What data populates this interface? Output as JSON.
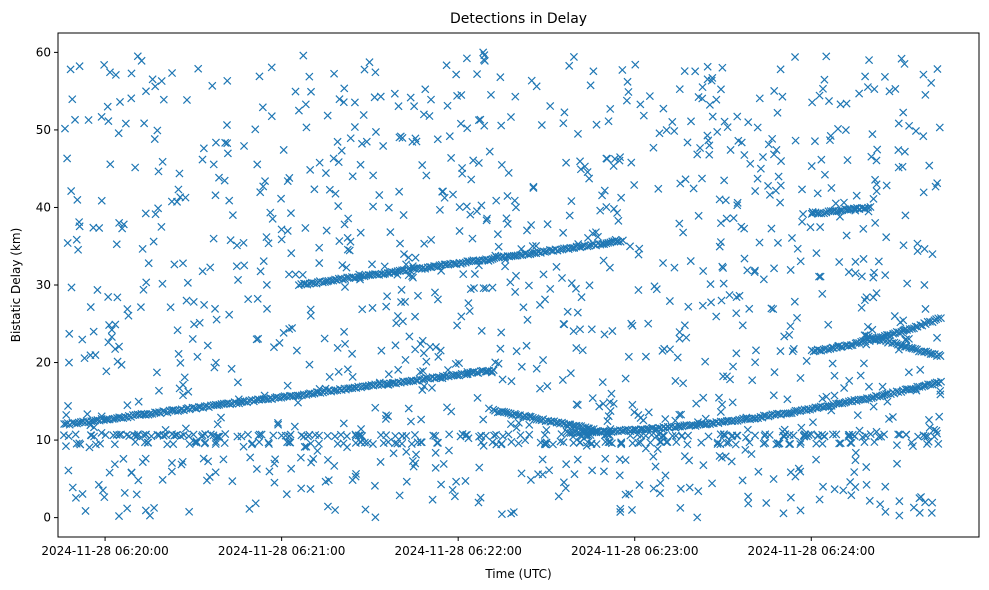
{
  "chart_data": {
    "type": "scatter",
    "title": "Detections in Delay",
    "xlabel": "Time (UTC)",
    "ylabel": "Bistatic Delay (km)",
    "xlim": [
      "2024-11-28 06:19:44",
      "2024-11-28 06:24:57"
    ],
    "ylim": [
      -2.5,
      62.5
    ],
    "grid": false,
    "marker": "x",
    "color": "#1f77b4",
    "x_ticks": [
      "2024-11-28 06:20:00",
      "2024-11-28 06:21:00",
      "2024-11-28 06:22:00",
      "2024-11-28 06:23:00",
      "2024-11-28 06:24:00"
    ],
    "y_ticks": [
      "0",
      "10",
      "20",
      "30",
      "40",
      "50",
      "60"
    ],
    "tracks": [
      {
        "x_start": "2024-11-28 06:19:46",
        "x_end": "2024-11-28 06:22:12",
        "y_start": 12.0,
        "y_end": 19.0,
        "curve": 1.0
      },
      {
        "x_start": "2024-11-28 06:22:37",
        "x_end": "2024-11-28 06:24:44",
        "y_start": 11.0,
        "y_end": 17.5,
        "curve": 1.8
      },
      {
        "x_start": "2024-11-28 06:24:00",
        "x_end": "2024-11-28 06:24:44",
        "y_start": 21.5,
        "y_end": 25.7,
        "curve": 1.4
      },
      {
        "x_start": "2024-11-28 06:21:06",
        "x_end": "2024-11-28 06:22:56",
        "y_start": 30.0,
        "y_end": 35.7,
        "curve": 1.0
      },
      {
        "x_start": "2024-11-28 06:24:00",
        "x_end": "2024-11-28 06:24:20",
        "y_start": 39.2,
        "y_end": 40.0,
        "curve": 1.0
      },
      {
        "x_start": "2024-11-28 06:22:12",
        "x_end": "2024-11-28 06:22:46",
        "y_start": 13.8,
        "y_end": 11.4,
        "curve": 1.0
      },
      {
        "x_start": "2024-11-28 06:24:18",
        "x_end": "2024-11-28 06:24:44",
        "y_start": 23.5,
        "y_end": 20.8,
        "curve": 1.0
      }
    ],
    "clutter_lines": [
      10.6,
      9.6
    ],
    "noise_point_count": 1100,
    "noise_y_range": [
      0,
      60
    ]
  }
}
